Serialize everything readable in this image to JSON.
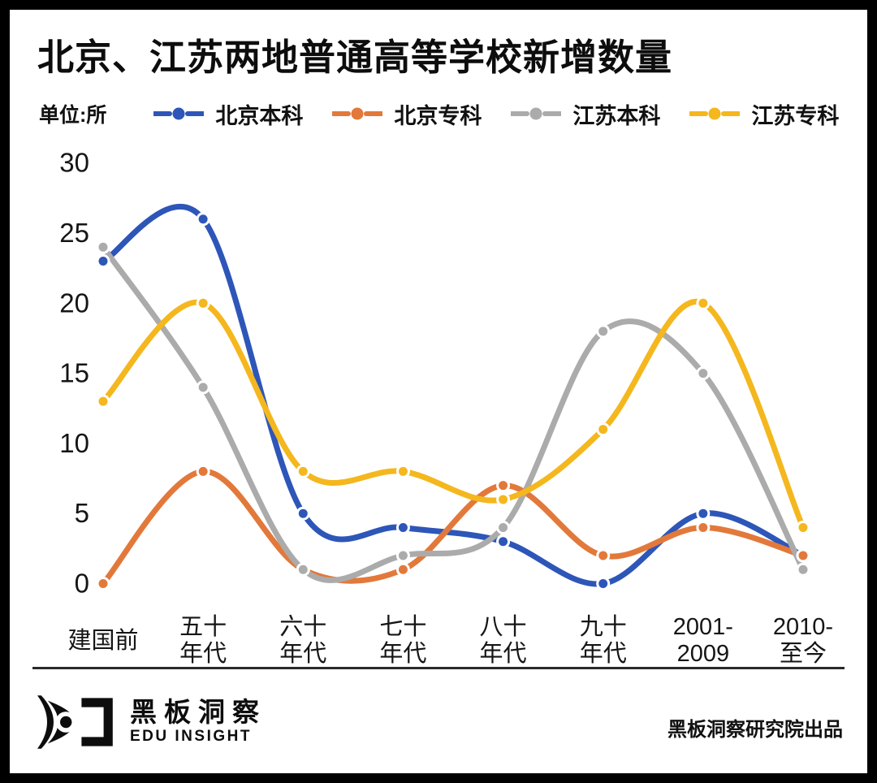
{
  "chart_data": {
    "type": "line",
    "title": "北京、江苏两地普通高等学校新增数量",
    "unit_label": "单位:所",
    "categories": [
      "建国前",
      "五十年代",
      "六十年代",
      "七十年代",
      "八十年代",
      "九十年代",
      "2001-2009",
      "2010-至今"
    ],
    "categories_display": [
      [
        "建国前"
      ],
      [
        "五十",
        "年代"
      ],
      [
        "六十",
        "年代"
      ],
      [
        "七十",
        "年代"
      ],
      [
        "八十",
        "年代"
      ],
      [
        "九十",
        "年代"
      ],
      [
        "2001-",
        "2009"
      ],
      [
        "2010-",
        "至今"
      ]
    ],
    "series": [
      {
        "name": "北京本科",
        "color": "#2d56b8",
        "values": [
          23,
          26,
          5,
          4,
          3,
          0,
          5,
          2
        ]
      },
      {
        "name": "北京专科",
        "color": "#e2793b",
        "values": [
          0,
          8,
          1,
          1,
          7,
          2,
          4,
          2
        ]
      },
      {
        "name": "江苏本科",
        "color": "#ababab",
        "values": [
          24,
          14,
          1,
          2,
          4,
          18,
          15,
          1
        ]
      },
      {
        "name": "江苏专科",
        "color": "#f4b71e",
        "values": [
          13,
          20,
          8,
          8,
          6,
          11,
          20,
          4
        ]
      }
    ],
    "y_axis": {
      "min": 0,
      "max": 30,
      "step": 5,
      "ticks": [
        30,
        25,
        20,
        15,
        10,
        5,
        0
      ]
    },
    "grid": false,
    "legend_position": "top",
    "line_style": "smooth-with-dot-markers"
  },
  "footer": {
    "brand_cn": "黑板洞察",
    "brand_en": "EDU INSIGHT",
    "credit": "黑板洞察研究院出品"
  }
}
